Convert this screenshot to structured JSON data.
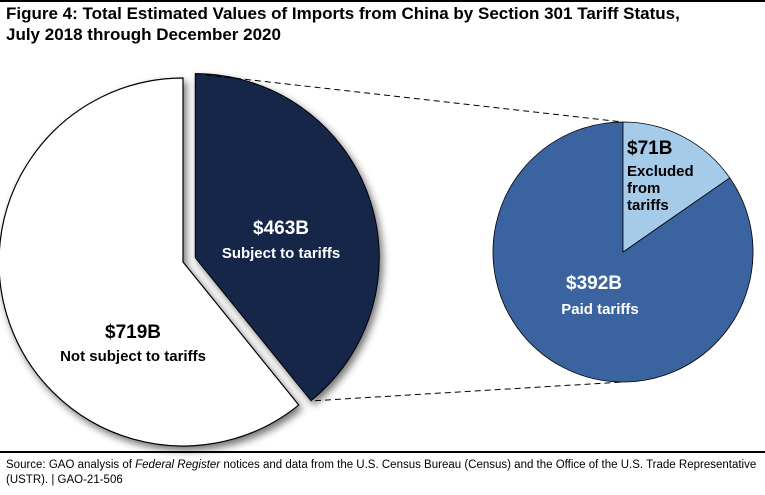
{
  "figure": {
    "title_line1": "Figure 4: Total Estimated Values of Imports from China by Section 301 Tariff Status,",
    "title_line2": "July 2018 through December 2020"
  },
  "colors": {
    "subject_fill": "#15254a",
    "not_subject_fill": "#ffffff",
    "paid_fill": "#3b63a0",
    "excluded_fill": "#a6cbe9",
    "outline": "#000000",
    "connector": "#000000"
  },
  "chart_data": [
    {
      "type": "pie",
      "title": "",
      "slices": [
        {
          "key": "subject",
          "value_label": "$463B",
          "label": "Subject to tariffs",
          "value": 463
        },
        {
          "key": "not_subject",
          "value_label": "$719B",
          "label": "Not subject to tariffs",
          "value": 719
        }
      ],
      "exploded_slice": "subject"
    },
    {
      "type": "pie",
      "title": "",
      "slices": [
        {
          "key": "paid",
          "value_label": "$392B",
          "label": "Paid tariffs",
          "value": 392
        },
        {
          "key": "excluded",
          "value_label": "$71B",
          "label": "Excluded from tariffs",
          "label_lines": [
            "Excluded",
            "from",
            "tariffs"
          ],
          "value": 71
        }
      ]
    }
  ],
  "source": {
    "prefix": "Source: GAO analysis of ",
    "italic": "Federal Register",
    "suffix": " notices and data from the U.S. Census Bureau (Census) and the Office of the U.S. Trade Representative (USTR).  |  GAO-21-506"
  }
}
